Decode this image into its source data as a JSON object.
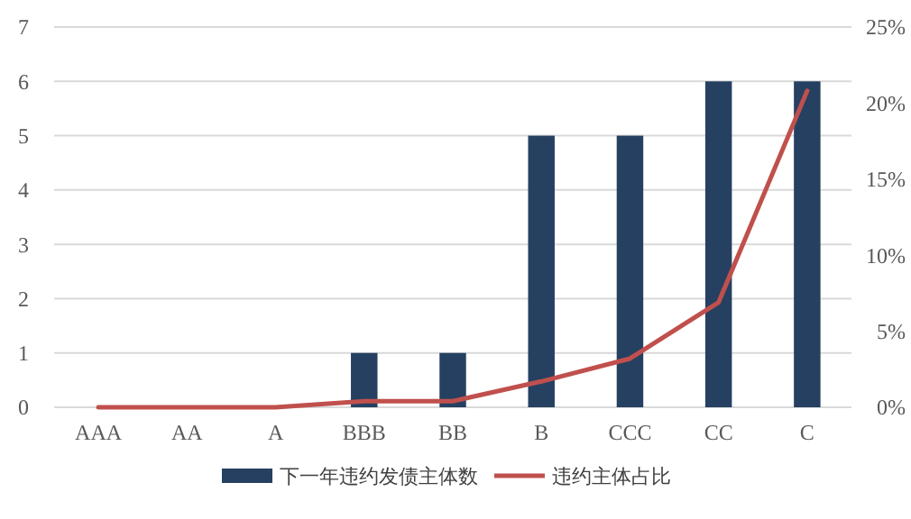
{
  "chart_data": {
    "type": "bar",
    "categories": [
      "AAA",
      "AA",
      "A",
      "BBB",
      "BB",
      "B",
      "CCC",
      "CC",
      "C"
    ],
    "series": [
      {
        "name": "下一年违约发债主体数",
        "color": "#264061",
        "values": [
          0,
          0,
          0,
          1,
          1,
          5,
          5,
          6,
          6
        ]
      },
      {
        "name": "违约主体占比",
        "type": "line",
        "axis": "y2",
        "color": "#c0504d",
        "values": [
          0,
          0,
          0,
          0.4,
          0.4,
          1.7,
          3.2,
          6.9,
          20.8
        ]
      }
    ],
    "ylim": [
      0,
      7
    ],
    "yticks": [
      0,
      1,
      2,
      3,
      4,
      5,
      6,
      7
    ],
    "y2lim": [
      0,
      25
    ],
    "y2ticks": [
      {
        "value": 0,
        "label": "0%"
      },
      {
        "value": 5,
        "label": "5%"
      },
      {
        "value": 10,
        "label": "10%"
      },
      {
        "value": 15,
        "label": "15%"
      },
      {
        "value": 20,
        "label": "20%"
      },
      {
        "value": 25,
        "label": "25%"
      }
    ],
    "grid": "y",
    "legend": "bottom",
    "marker": "none",
    "line_style": "solid"
  }
}
